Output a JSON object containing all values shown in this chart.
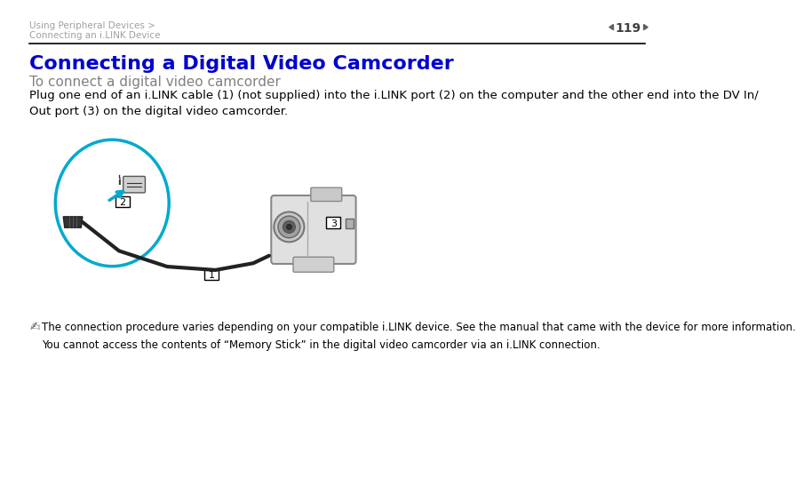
{
  "bg_color": "#ffffff",
  "header_breadcrumb_line1": "Using Peripheral Devices >",
  "header_breadcrumb_line2": "Connecting an i.LINK Device",
  "header_breadcrumb_color": "#a0a0a0",
  "page_number": "119",
  "page_number_color": "#404040",
  "title": "Connecting a Digital Video Camcorder",
  "title_color": "#0000cc",
  "title_fontsize": 16,
  "subtitle": "To connect a digital video camcorder",
  "subtitle_color": "#808080",
  "subtitle_fontsize": 11,
  "body_text": "Plug one end of an i.LINK cable (1) (not supplied) into the i.LINK port (2) on the computer and the other end into the DV In/\nOut port (3) on the digital video camcorder.",
  "body_color": "#000000",
  "body_fontsize": 9.5,
  "note_text1": "The connection procedure varies depending on your compatible i.LINK device. See the manual that came with the device for more information.",
  "note_text2": "You cannot access the contents of “Memory Stick” in the digital video camcorder via an i.LINK connection.",
  "note_color": "#000000",
  "note_fontsize": 8.5,
  "separator_color": "#000000",
  "arrow_color": "#00aacc",
  "circle_color": "#00aacc",
  "label_box_color": "#ffffff",
  "label_border_color": "#000000"
}
